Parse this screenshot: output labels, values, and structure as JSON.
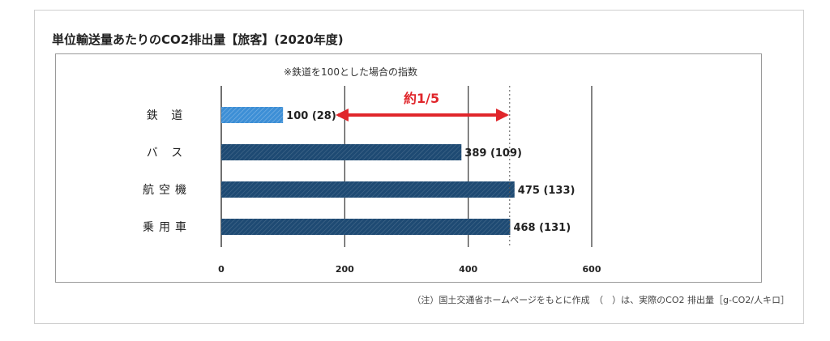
{
  "title": "単位輸送量あたりのCO2排出量【旅客】(2020年度)",
  "note": "※鉄道を100とした場合の指数",
  "callout": "約1/5",
  "footnote": "（注）国土交通省ホームページをもとに作成　（　）は、実際のCO2 排出量［g-CO2/人キロ］",
  "colors": {
    "rail_bar": "#3d8fd6",
    "other_bar": "#1e4a73",
    "arrow": "#e0262b",
    "gridline": "#333333",
    "dotted_ref": "#555555"
  },
  "chart_data": {
    "type": "bar",
    "orientation": "horizontal",
    "title": "単位輸送量あたりのCO2排出量【旅客】(2020年度)",
    "categories": [
      "鉄道",
      "バス",
      "航空機",
      "乗用車"
    ],
    "category_labels": [
      "鉄 道",
      "バ ス",
      "航空機",
      "乗用車"
    ],
    "values": [
      100,
      389,
      475,
      468
    ],
    "actual_emissions": [
      28,
      109,
      133,
      131
    ],
    "value_labels": [
      "100 (28)",
      "389 (109)",
      "475 (133)",
      "468 (131)"
    ],
    "xlim": [
      0,
      600
    ],
    "xticks": [
      0,
      200,
      400,
      600
    ],
    "xtick_labels": [
      "0",
      "200",
      "400",
      "600"
    ],
    "grid": true,
    "reference_line_value": 475,
    "annotation": {
      "text": "約1/5",
      "from_value": 100,
      "to_value": 475,
      "category_index": 0
    }
  }
}
